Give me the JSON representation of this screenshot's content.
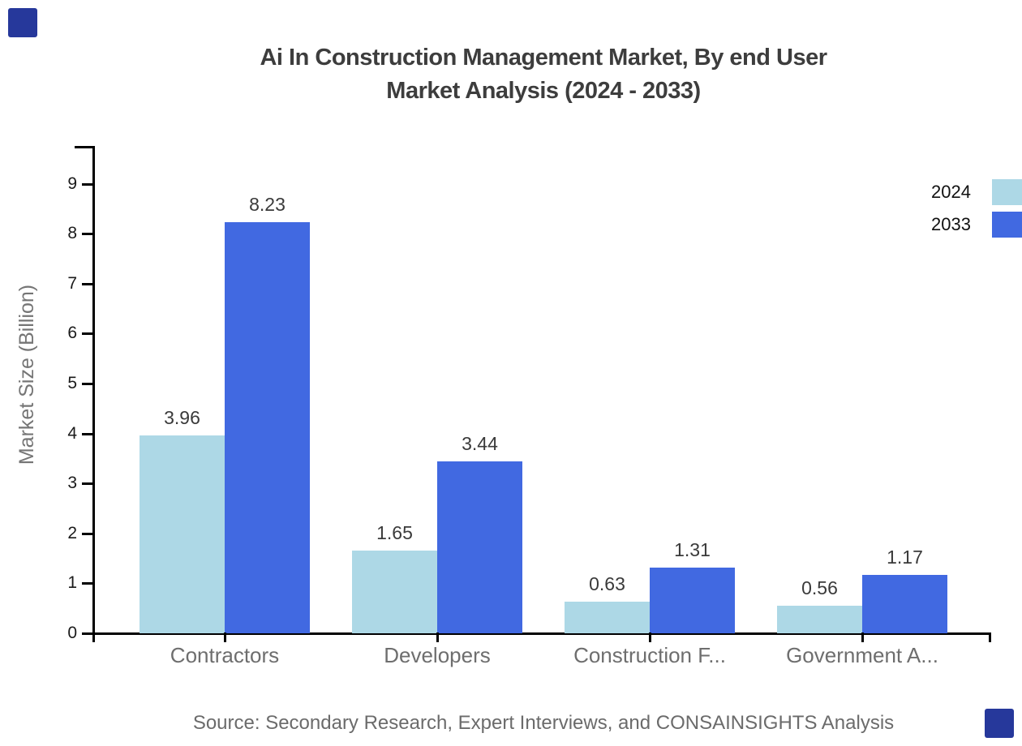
{
  "title": {
    "line1": "Ai In Construction Management Market, By end User",
    "line2": "Market Analysis (2024 - 2033)"
  },
  "chart_data": {
    "type": "bar",
    "categories": [
      "Contractors",
      "Developers",
      "Construction F...",
      "Government A..."
    ],
    "series": [
      {
        "name": "2024",
        "color": "#ADD8E6",
        "values": [
          3.96,
          1.65,
          0.63,
          0.56
        ]
      },
      {
        "name": "2033",
        "color": "#4169E1",
        "values": [
          8.23,
          3.44,
          1.31,
          1.17
        ]
      }
    ],
    "title": "Ai In Construction Management Market, By end User Market Analysis (2024 - 2033)",
    "xlabel": "",
    "ylabel": "Market Size (Billion)",
    "ylim": [
      0,
      9.75
    ],
    "yticks": [
      0,
      1,
      2,
      3,
      4,
      5,
      6,
      7,
      8,
      9
    ],
    "grid": false,
    "legend_position": "top-right",
    "value_labels_shown": true
  },
  "legend": {
    "items": [
      {
        "label": "2024",
        "color": "#ADD8E6"
      },
      {
        "label": "2033",
        "color": "#4169E1"
      }
    ]
  },
  "source_note": "Source: Secondary Research, Expert Interviews, and CONSAINSIGHTS Analysis",
  "decorations": {
    "corner_mark_color": "#26389B"
  },
  "colors": {
    "axis": "#000000",
    "title_text": "#3d3d3d",
    "tick_text": "#1a1a1a",
    "category_text": "#6e6e6e",
    "value_text": "#3a3a3a",
    "source_text": "#6b6b6b"
  }
}
